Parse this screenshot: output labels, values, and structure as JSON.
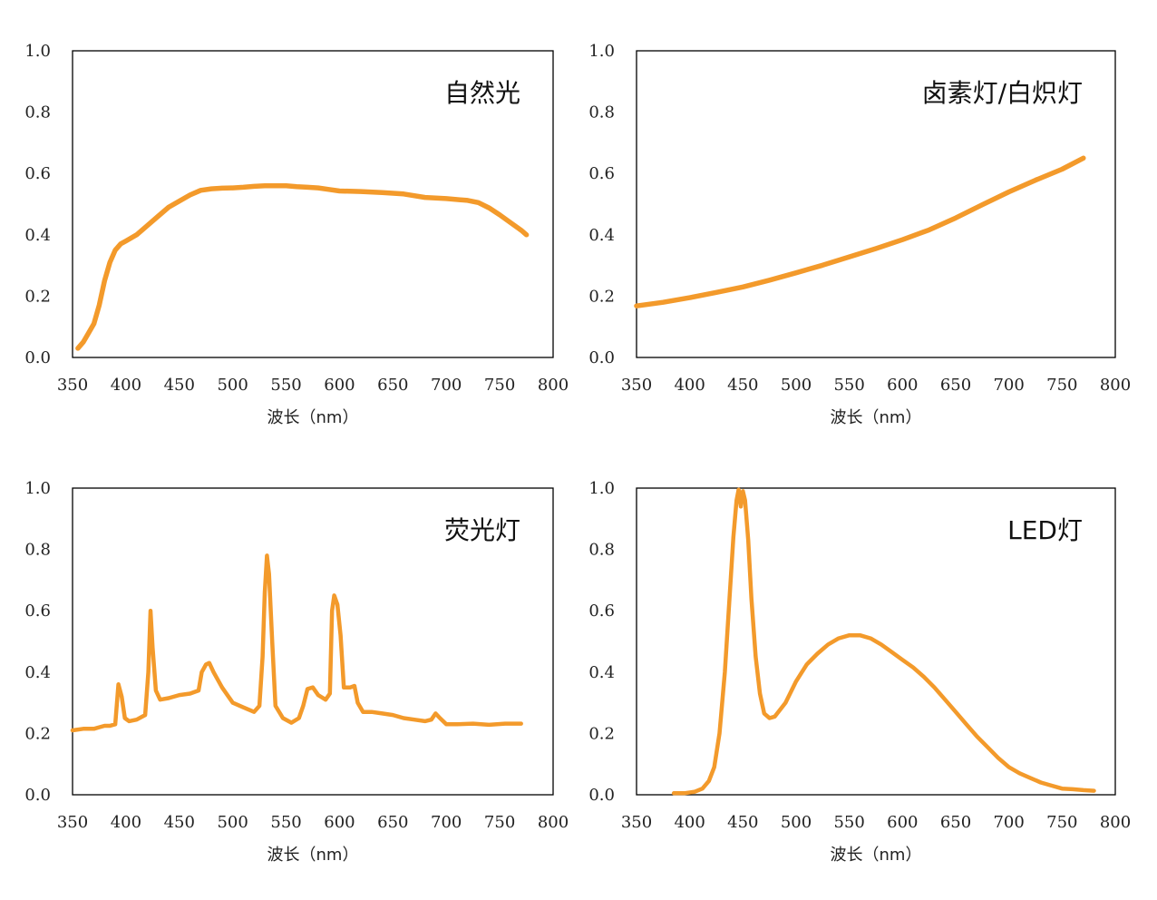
{
  "x_tick_labels": [
    "350",
    "400",
    "450",
    "500",
    "550",
    "600",
    "650",
    "700",
    "750",
    "800"
  ],
  "y_tick_labels": [
    "0.0",
    "0.2",
    "0.4",
    "0.6",
    "0.8",
    "1.0"
  ],
  "line_color": "#F39A2B",
  "chart_data": [
    {
      "type": "line",
      "title": "自然光",
      "xlabel": "波长（nm）",
      "ylabel": "",
      "xlim": [
        350,
        800
      ],
      "ylim": [
        0,
        1.0
      ],
      "grid": false,
      "series": [
        {
          "points": [
            [
              355,
              0.03
            ],
            [
              360,
              0.05
            ],
            [
              365,
              0.08
            ],
            [
              370,
              0.11
            ],
            [
              375,
              0.17
            ],
            [
              380,
              0.25
            ],
            [
              385,
              0.31
            ],
            [
              390,
              0.35
            ],
            [
              395,
              0.37
            ],
            [
              400,
              0.38
            ],
            [
              410,
              0.4
            ],
            [
              420,
              0.43
            ],
            [
              430,
              0.46
            ],
            [
              440,
              0.49
            ],
            [
              450,
              0.51
            ],
            [
              460,
              0.53
            ],
            [
              470,
              0.545
            ],
            [
              480,
              0.55
            ],
            [
              490,
              0.552
            ],
            [
              500,
              0.553
            ],
            [
              510,
              0.555
            ],
            [
              520,
              0.558
            ],
            [
              530,
              0.56
            ],
            [
              540,
              0.56
            ],
            [
              550,
              0.56
            ],
            [
              560,
              0.557
            ],
            [
              570,
              0.555
            ],
            [
              580,
              0.553
            ],
            [
              590,
              0.548
            ],
            [
              600,
              0.543
            ],
            [
              620,
              0.541
            ],
            [
              640,
              0.538
            ],
            [
              660,
              0.533
            ],
            [
              680,
              0.522
            ],
            [
              700,
              0.518
            ],
            [
              720,
              0.512
            ],
            [
              730,
              0.505
            ],
            [
              740,
              0.488
            ],
            [
              750,
              0.465
            ],
            [
              760,
              0.44
            ],
            [
              770,
              0.415
            ],
            [
              775,
              0.4
            ]
          ]
        }
      ]
    },
    {
      "type": "line",
      "title": "卤素灯/白炽灯",
      "xlabel": "波长（nm）",
      "ylabel": "",
      "xlim": [
        350,
        800
      ],
      "ylim": [
        0,
        1.0
      ],
      "grid": false,
      "series": [
        {
          "points": [
            [
              350,
              0.168
            ],
            [
              375,
              0.18
            ],
            [
              400,
              0.195
            ],
            [
              425,
              0.212
            ],
            [
              450,
              0.23
            ],
            [
              475,
              0.252
            ],
            [
              500,
              0.276
            ],
            [
              525,
              0.301
            ],
            [
              550,
              0.328
            ],
            [
              575,
              0.355
            ],
            [
              600,
              0.384
            ],
            [
              625,
              0.416
            ],
            [
              650,
              0.455
            ],
            [
              675,
              0.498
            ],
            [
              700,
              0.54
            ],
            [
              725,
              0.578
            ],
            [
              750,
              0.614
            ],
            [
              770,
              0.65
            ]
          ]
        }
      ]
    },
    {
      "type": "line",
      "title": "荧光灯",
      "xlabel": "波长（nm）",
      "ylabel": "",
      "xlim": [
        350,
        800
      ],
      "ylim": [
        0,
        1.0
      ],
      "grid": false,
      "series": [
        {
          "points": [
            [
              350,
              0.21
            ],
            [
              360,
              0.215
            ],
            [
              370,
              0.215
            ],
            [
              375,
              0.22
            ],
            [
              380,
              0.225
            ],
            [
              385,
              0.225
            ],
            [
              390,
              0.23
            ],
            [
              393,
              0.36
            ],
            [
              396,
              0.32
            ],
            [
              399,
              0.25
            ],
            [
              403,
              0.24
            ],
            [
              410,
              0.245
            ],
            [
              418,
              0.26
            ],
            [
              421,
              0.4
            ],
            [
              423,
              0.6
            ],
            [
              425,
              0.48
            ],
            [
              428,
              0.34
            ],
            [
              432,
              0.31
            ],
            [
              440,
              0.315
            ],
            [
              450,
              0.325
            ],
            [
              460,
              0.33
            ],
            [
              468,
              0.34
            ],
            [
              471,
              0.4
            ],
            [
              475,
              0.425
            ],
            [
              478,
              0.43
            ],
            [
              482,
              0.4
            ],
            [
              490,
              0.35
            ],
            [
              500,
              0.3
            ],
            [
              510,
              0.285
            ],
            [
              520,
              0.27
            ],
            [
              525,
              0.29
            ],
            [
              528,
              0.45
            ],
            [
              530,
              0.66
            ],
            [
              532,
              0.78
            ],
            [
              534,
              0.72
            ],
            [
              537,
              0.5
            ],
            [
              540,
              0.29
            ],
            [
              547,
              0.25
            ],
            [
              555,
              0.235
            ],
            [
              562,
              0.25
            ],
            [
              566,
              0.29
            ],
            [
              570,
              0.345
            ],
            [
              575,
              0.35
            ],
            [
              580,
              0.325
            ],
            [
              587,
              0.31
            ],
            [
              591,
              0.33
            ],
            [
              593,
              0.6
            ],
            [
              595,
              0.65
            ],
            [
              598,
              0.62
            ],
            [
              601,
              0.52
            ],
            [
              604,
              0.35
            ],
            [
              610,
              0.35
            ],
            [
              614,
              0.355
            ],
            [
              617,
              0.3
            ],
            [
              622,
              0.27
            ],
            [
              630,
              0.27
            ],
            [
              640,
              0.265
            ],
            [
              650,
              0.26
            ],
            [
              660,
              0.25
            ],
            [
              670,
              0.245
            ],
            [
              680,
              0.24
            ],
            [
              686,
              0.245
            ],
            [
              690,
              0.265
            ],
            [
              694,
              0.25
            ],
            [
              700,
              0.23
            ],
            [
              710,
              0.23
            ],
            [
              725,
              0.232
            ],
            [
              740,
              0.228
            ],
            [
              755,
              0.232
            ],
            [
              770,
              0.232
            ]
          ]
        }
      ]
    },
    {
      "type": "line",
      "title": "LED灯",
      "xlabel": "波长（nm）",
      "ylabel": "",
      "xlim": [
        350,
        800
      ],
      "ylim": [
        0,
        1.0
      ],
      "grid": false,
      "series": [
        {
          "points": [
            [
              385,
              0.005
            ],
            [
              395,
              0.005
            ],
            [
              405,
              0.01
            ],
            [
              412,
              0.02
            ],
            [
              418,
              0.045
            ],
            [
              423,
              0.09
            ],
            [
              428,
              0.2
            ],
            [
              433,
              0.4
            ],
            [
              437,
              0.62
            ],
            [
              441,
              0.84
            ],
            [
              444,
              0.96
            ],
            [
              446,
              0.995
            ],
            [
              448,
              0.94
            ],
            [
              450,
              0.99
            ],
            [
              452,
              0.96
            ],
            [
              455,
              0.83
            ],
            [
              458,
              0.64
            ],
            [
              462,
              0.45
            ],
            [
              466,
              0.33
            ],
            [
              470,
              0.265
            ],
            [
              475,
              0.25
            ],
            [
              480,
              0.255
            ],
            [
              490,
              0.3
            ],
            [
              500,
              0.37
            ],
            [
              510,
              0.425
            ],
            [
              520,
              0.46
            ],
            [
              530,
              0.49
            ],
            [
              540,
              0.51
            ],
            [
              550,
              0.52
            ],
            [
              560,
              0.52
            ],
            [
              570,
              0.51
            ],
            [
              580,
              0.49
            ],
            [
              590,
              0.465
            ],
            [
              600,
              0.44
            ],
            [
              610,
              0.415
            ],
            [
              620,
              0.385
            ],
            [
              630,
              0.35
            ],
            [
              640,
              0.31
            ],
            [
              650,
              0.27
            ],
            [
              660,
              0.23
            ],
            [
              670,
              0.19
            ],
            [
              680,
              0.155
            ],
            [
              690,
              0.12
            ],
            [
              700,
              0.09
            ],
            [
              710,
              0.07
            ],
            [
              720,
              0.055
            ],
            [
              730,
              0.04
            ],
            [
              740,
              0.03
            ],
            [
              750,
              0.02
            ],
            [
              760,
              0.018
            ],
            [
              770,
              0.015
            ],
            [
              780,
              0.013
            ]
          ]
        }
      ]
    }
  ]
}
